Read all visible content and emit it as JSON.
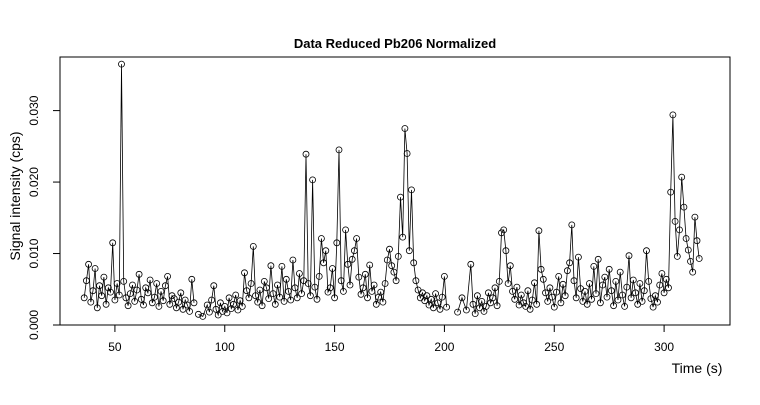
{
  "chart_data": {
    "type": "line",
    "title": "Data Reduced Pb206 Normalized",
    "xlabel": "Time (s)",
    "ylabel": "Signal intensity (cps)",
    "xlim": [
      25,
      330
    ],
    "ylim": [
      0.0,
      0.0375
    ],
    "xticks": [
      50,
      100,
      150,
      200,
      250,
      300
    ],
    "yticks": [
      0.0,
      0.01,
      0.02,
      0.03
    ],
    "xtick_labels": [
      "50",
      "100",
      "150",
      "200",
      "250",
      "300"
    ],
    "ytick_labels": [
      "0.000",
      "0.010",
      "0.020",
      "0.030"
    ],
    "marker": "open-circle",
    "line_style": "thin vertical-ish connecting lines",
    "grid": false,
    "legend": "none",
    "segments": [
      {
        "name": "",
        "x": [
          36,
          37,
          38,
          39,
          40,
          41,
          42,
          43,
          44,
          45,
          46,
          47,
          48,
          49,
          50,
          51,
          52,
          53,
          54,
          55,
          56,
          57,
          58,
          59,
          60,
          61,
          62,
          63,
          64,
          65,
          66,
          67,
          68,
          69,
          70,
          71,
          72,
          73,
          74,
          75,
          76,
          77,
          78,
          79,
          80,
          81,
          82,
          83,
          84,
          85,
          86
        ],
        "y": [
          0.0038,
          0.0062,
          0.0085,
          0.0032,
          0.0048,
          0.0079,
          0.0024,
          0.0055,
          0.0041,
          0.0067,
          0.0029,
          0.0052,
          0.0046,
          0.0115,
          0.0035,
          0.0058,
          0.0042,
          0.0365,
          0.0061,
          0.0038,
          0.0027,
          0.0044,
          0.0056,
          0.0033,
          0.0049,
          0.0071,
          0.0036,
          0.0028,
          0.0052,
          0.0045,
          0.0063,
          0.0031,
          0.0039,
          0.0058,
          0.0026,
          0.0047,
          0.0034,
          0.0055,
          0.0068,
          0.0029,
          0.0041,
          0.0037,
          0.0024,
          0.0032,
          0.0045,
          0.0022,
          0.0035,
          0.0028,
          0.0019,
          0.0064,
          0.0031
        ]
      },
      {
        "name": "",
        "x": [
          88,
          90,
          92,
          93,
          94,
          95,
          96,
          97,
          98,
          99,
          100,
          101,
          102,
          103,
          104,
          105,
          106,
          107,
          108,
          109,
          110,
          111,
          112,
          113,
          114,
          115,
          116,
          117,
          118,
          119,
          120,
          121,
          122,
          123,
          124,
          125,
          126,
          127,
          128,
          129,
          130,
          131,
          132,
          133,
          134,
          135,
          136,
          137,
          138,
          139,
          140,
          141,
          142,
          143,
          144,
          145,
          146,
          147,
          148,
          149,
          150,
          151,
          152,
          153,
          154,
          155,
          156,
          157,
          158,
          159,
          160,
          161,
          162,
          163,
          164,
          165,
          166,
          167,
          168,
          169,
          170,
          171,
          172,
          173,
          174,
          175,
          176,
          177,
          178,
          179,
          180,
          181,
          182,
          183,
          184,
          185,
          186,
          187,
          188,
          189,
          190,
          191,
          192,
          193,
          194,
          195,
          196,
          197,
          198,
          199,
          200,
          201
        ],
        "y": [
          0.0015,
          0.0012,
          0.0028,
          0.0018,
          0.0035,
          0.0055,
          0.0022,
          0.0014,
          0.0031,
          0.0019,
          0.0026,
          0.0017,
          0.0038,
          0.0023,
          0.0029,
          0.0042,
          0.0021,
          0.0034,
          0.0026,
          0.0073,
          0.0048,
          0.0038,
          0.0058,
          0.011,
          0.0041,
          0.0032,
          0.0049,
          0.0027,
          0.0061,
          0.0052,
          0.0037,
          0.0083,
          0.0044,
          0.0029,
          0.0056,
          0.0039,
          0.0082,
          0.0033,
          0.0064,
          0.0047,
          0.0035,
          0.0091,
          0.0052,
          0.0038,
          0.0072,
          0.0044,
          0.0062,
          0.0239,
          0.0058,
          0.0041,
          0.0203,
          0.0053,
          0.0036,
          0.0068,
          0.0121,
          0.0087,
          0.0104,
          0.0046,
          0.0052,
          0.0079,
          0.0038,
          0.0115,
          0.0245,
          0.0062,
          0.0047,
          0.0133,
          0.0085,
          0.0056,
          0.0092,
          0.0104,
          0.0121,
          0.0067,
          0.0043,
          0.0052,
          0.0071,
          0.0038,
          0.0084,
          0.0047,
          0.0056,
          0.0029,
          0.0039,
          0.0046,
          0.0032,
          0.0058,
          0.0091,
          0.0106,
          0.0083,
          0.0074,
          0.0062,
          0.0096,
          0.0179,
          0.0123,
          0.0275,
          0.024,
          0.0104,
          0.0189,
          0.0087,
          0.0062,
          0.0049,
          0.0038,
          0.0045,
          0.0034,
          0.0041,
          0.0028,
          0.0036,
          0.0024,
          0.0044,
          0.0031,
          0.0022,
          0.0039,
          0.0068,
          0.0025
        ]
      },
      {
        "name": "",
        "x": [
          206,
          208,
          210,
          212,
          213,
          214,
          215,
          216,
          217,
          218,
          219,
          220,
          221,
          222,
          223,
          224,
          225,
          226,
          227,
          228,
          229,
          230,
          231,
          232,
          233,
          234,
          235,
          236,
          237,
          238,
          239,
          240,
          241,
          242,
          243,
          244,
          245,
          246,
          247,
          248,
          249,
          250,
          251,
          252,
          253,
          254,
          255,
          256,
          257,
          258,
          259,
          260,
          261,
          262,
          263,
          264,
          265,
          266,
          267,
          268,
          269,
          270,
          271,
          272,
          273,
          274,
          275,
          276,
          277,
          278,
          279,
          280,
          281,
          282,
          283,
          284,
          285,
          286,
          287,
          288,
          289,
          290,
          291,
          292,
          293,
          294,
          295,
          296,
          297,
          298,
          299,
          300,
          301,
          302,
          303,
          304,
          305,
          306,
          307,
          308,
          309,
          310,
          311,
          312,
          313,
          314,
          315,
          316
        ],
        "y": [
          0.0018,
          0.0038,
          0.0021,
          0.0085,
          0.0029,
          0.0016,
          0.0041,
          0.0024,
          0.0033,
          0.0019,
          0.0026,
          0.0045,
          0.0031,
          0.0038,
          0.0052,
          0.0027,
          0.0061,
          0.0129,
          0.0133,
          0.0104,
          0.0058,
          0.0083,
          0.0047,
          0.0036,
          0.0053,
          0.0028,
          0.0042,
          0.0031,
          0.0026,
          0.0048,
          0.0022,
          0.0035,
          0.0059,
          0.0029,
          0.0132,
          0.0078,
          0.0064,
          0.0045,
          0.0033,
          0.0052,
          0.0039,
          0.0025,
          0.0046,
          0.0068,
          0.0031,
          0.0057,
          0.0041,
          0.0076,
          0.0087,
          0.014,
          0.0062,
          0.0038,
          0.0095,
          0.0051,
          0.0033,
          0.0047,
          0.0029,
          0.0058,
          0.0036,
          0.0082,
          0.0044,
          0.0092,
          0.0031,
          0.0056,
          0.0067,
          0.0039,
          0.0078,
          0.0048,
          0.0027,
          0.0061,
          0.0035,
          0.0074,
          0.0042,
          0.0026,
          0.0053,
          0.0097,
          0.0038,
          0.0063,
          0.0045,
          0.0029,
          0.0058,
          0.0033,
          0.0048,
          0.0104,
          0.0061,
          0.0037,
          0.0025,
          0.0041,
          0.0032,
          0.0056,
          0.0072,
          0.0045,
          0.0064,
          0.0052,
          0.0186,
          0.0294,
          0.0145,
          0.0096,
          0.0133,
          0.0207,
          0.0165,
          0.0121,
          0.0105,
          0.0089,
          0.0074,
          0.0151,
          0.0118,
          0.0093
        ]
      }
    ]
  }
}
